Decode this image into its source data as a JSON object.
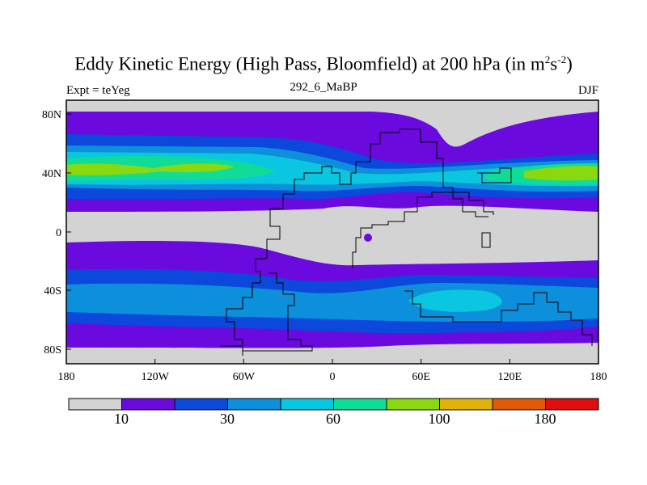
{
  "chart_data": {
    "type": "heatmap",
    "title": "Eddy Kinetic Energy (High Pass, Bloomfield) at 200 hPa (in m",
    "title_units_sup1": "2",
    "title_units_mid": "s",
    "title_units_sup2": "-2",
    "title_units_end": ")",
    "subtitle": "292_6_MaBP",
    "left_label": "Expt = teYeg",
    "right_label": "DJF",
    "x_ticks": [
      "180",
      "120W",
      "60W",
      "0",
      "60E",
      "120E",
      "180"
    ],
    "y_ticks": [
      "80N",
      "40N",
      "0",
      "40S",
      "80S"
    ],
    "xlim": [
      -180,
      180
    ],
    "ylim": [
      -90,
      90
    ],
    "colorbar": {
      "levels": [
        10,
        20,
        30,
        45,
        60,
        80,
        100,
        140,
        180
      ],
      "tick_labels": [
        "10",
        "30",
        "60",
        "100",
        "180"
      ],
      "colors": [
        "#d3d3d3",
        "#6a0adf",
        "#0b48db",
        "#0c90db",
        "#0bc6e0",
        "#10dc98",
        "#8ad80f",
        "#e0b20a",
        "#e05a0a",
        "#e00e0e"
      ]
    }
  }
}
